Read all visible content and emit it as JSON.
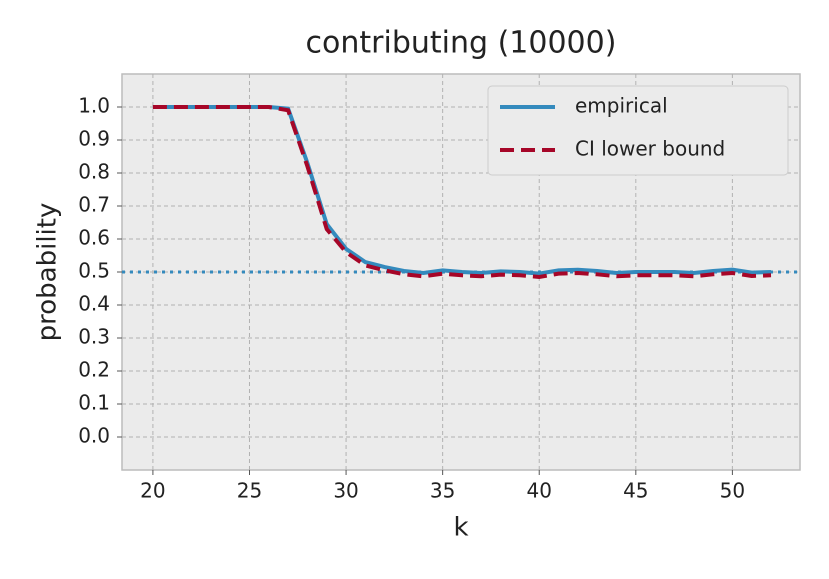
{
  "chart_data": {
    "type": "line",
    "title": "contributing (10000)",
    "x_label": "k",
    "y_label": "probability",
    "x": [
      20,
      21,
      22,
      23,
      24,
      25,
      26,
      27,
      28,
      29,
      30,
      31,
      32,
      33,
      34,
      35,
      36,
      37,
      38,
      39,
      40,
      41,
      42,
      43,
      44,
      45,
      46,
      47,
      48,
      49,
      50,
      51,
      52
    ],
    "series": [
      {
        "name": "empirical",
        "color": "#348abd",
        "linestyle": "solid",
        "values": [
          1.0,
          1.0,
          1.0,
          1.0,
          1.0,
          1.0,
          1.0,
          0.995,
          0.83,
          0.645,
          0.57,
          0.53,
          0.515,
          0.503,
          0.497,
          0.505,
          0.5,
          0.497,
          0.502,
          0.5,
          0.495,
          0.505,
          0.507,
          0.503,
          0.497,
          0.5,
          0.5,
          0.5,
          0.497,
          0.503,
          0.507,
          0.498,
          0.5
        ]
      },
      {
        "name": "CI lower bound",
        "color": "#a60628",
        "linestyle": "dashed",
        "values": [
          1.0,
          1.0,
          1.0,
          1.0,
          1.0,
          1.0,
          1.0,
          0.99,
          0.82,
          0.63,
          0.56,
          0.52,
          0.505,
          0.493,
          0.487,
          0.495,
          0.49,
          0.487,
          0.492,
          0.49,
          0.485,
          0.495,
          0.497,
          0.493,
          0.487,
          0.49,
          0.49,
          0.49,
          0.487,
          0.493,
          0.497,
          0.488,
          0.49
        ]
      }
    ],
    "reference_line": {
      "value": 0.5,
      "color": "#348abd",
      "linestyle": "dotted"
    },
    "xlim": [
      18.4,
      53.5
    ],
    "ylim": [
      -0.1,
      1.1
    ],
    "xticks": [
      20,
      25,
      30,
      35,
      40,
      45,
      50
    ],
    "yticks": [
      {
        "value": 0,
        "label": "0.0"
      },
      0.1,
      0.2,
      0.3,
      0.4,
      0.5,
      0.6,
      0.7,
      0.8,
      0.9,
      {
        "value": 1,
        "label": "1.0"
      }
    ],
    "grid": true,
    "legend": "upper right"
  }
}
